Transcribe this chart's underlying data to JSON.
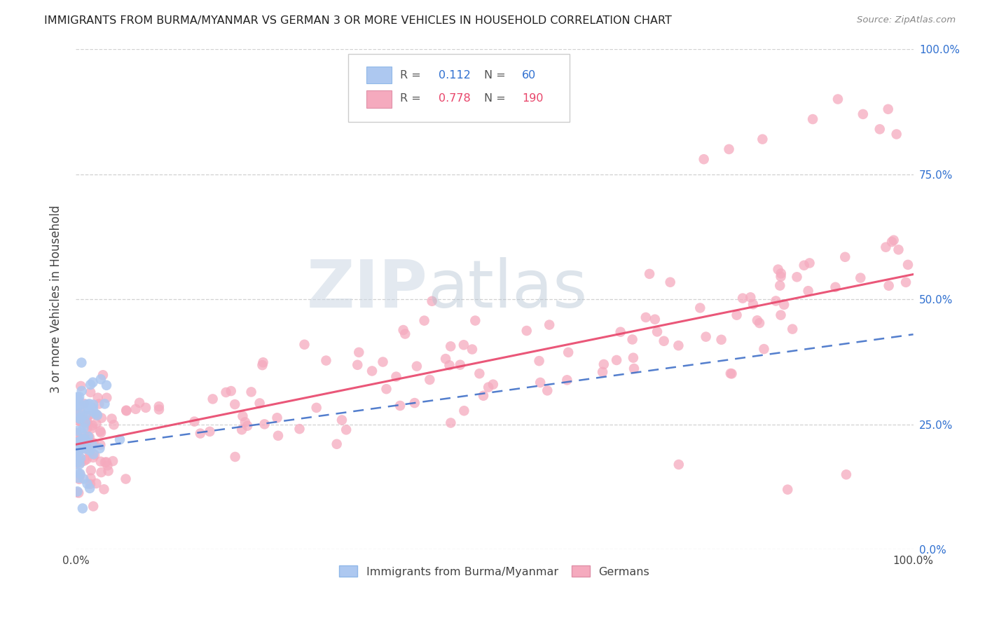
{
  "title": "IMMIGRANTS FROM BURMA/MYANMAR VS GERMAN 3 OR MORE VEHICLES IN HOUSEHOLD CORRELATION CHART",
  "source": "Source: ZipAtlas.com",
  "ylabel": "3 or more Vehicles in Household",
  "blue_R": 0.112,
  "blue_N": 60,
  "pink_R": 0.778,
  "pink_N": 190,
  "blue_color": "#adc8f0",
  "pink_color": "#f5aabe",
  "blue_line_color": "#4070c8",
  "pink_line_color": "#e8456a",
  "background_color": "#ffffff",
  "grid_color": "#cccccc",
  "legend_label_blue": "Immigrants from Burma/Myanmar",
  "legend_label_pink": "Germans",
  "xlim": [
    0.0,
    1.0
  ],
  "ylim": [
    0.0,
    1.0
  ],
  "blue_seed": 42,
  "pink_seed": 99
}
